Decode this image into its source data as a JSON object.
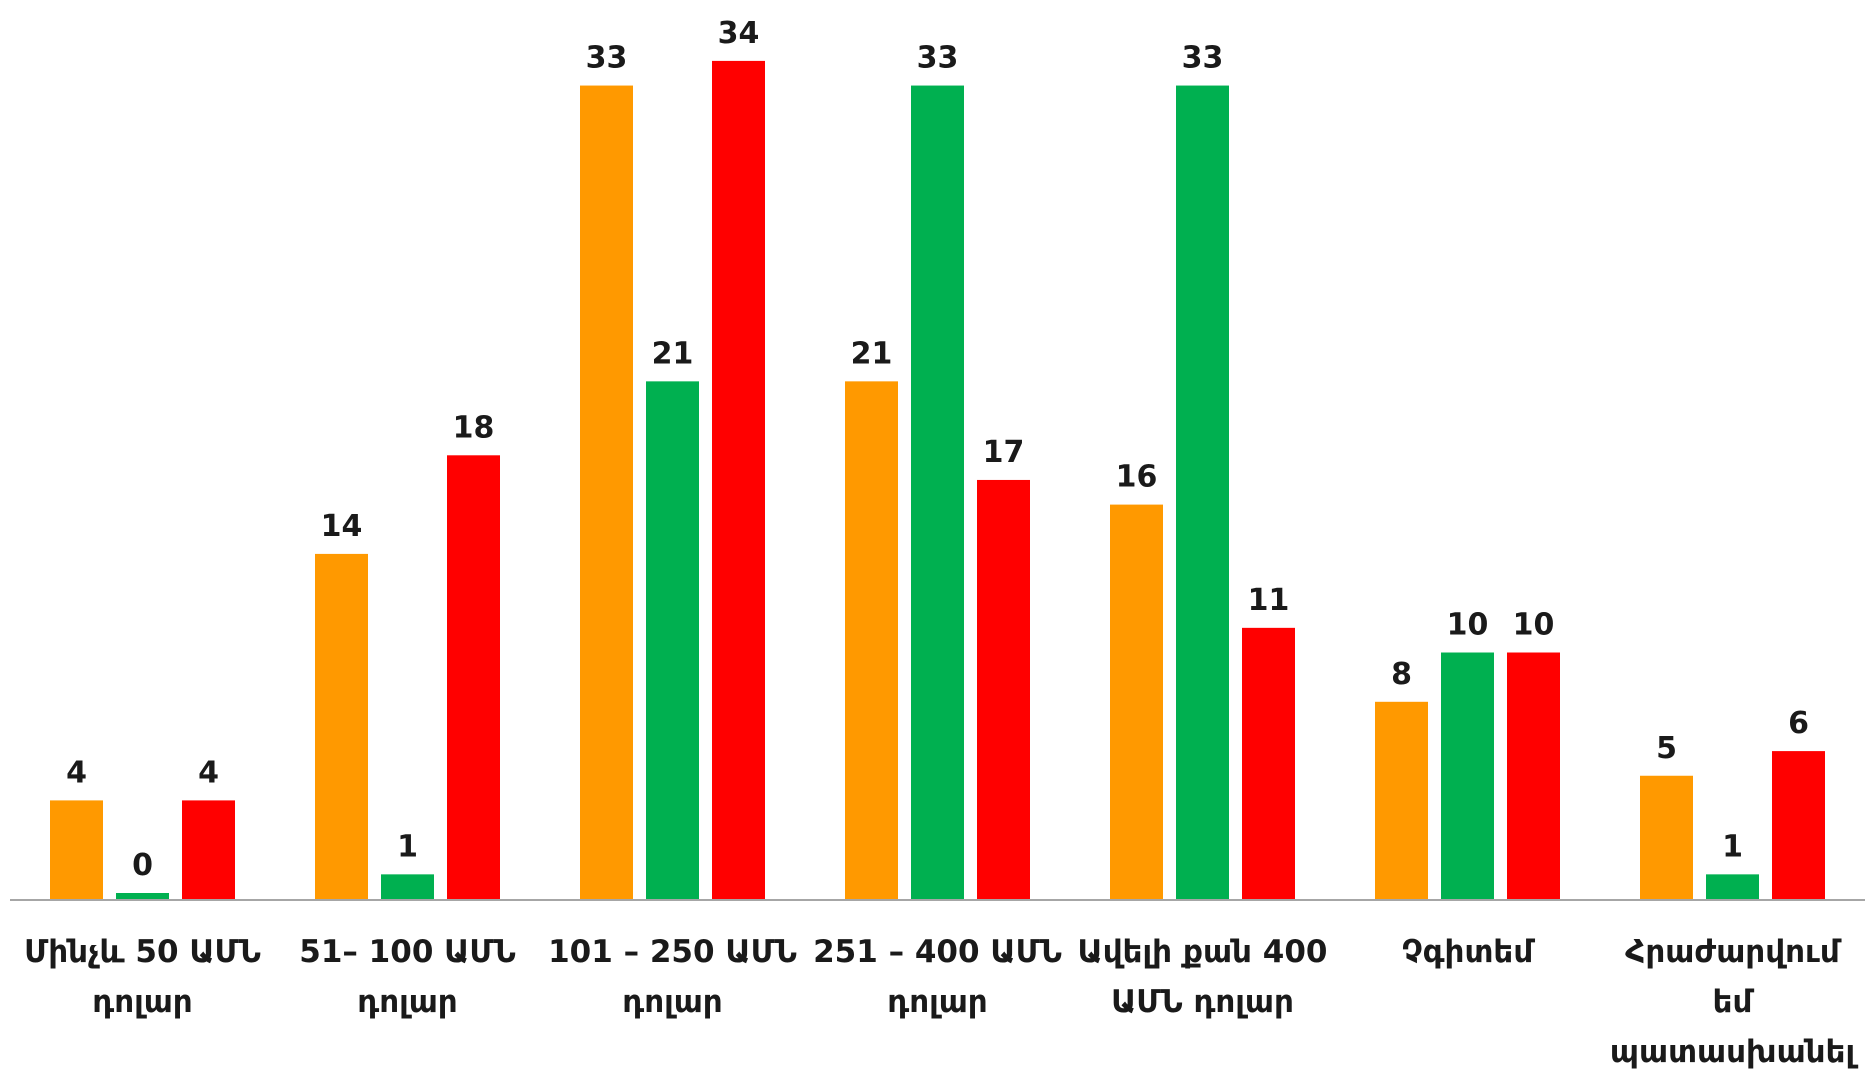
{
  "chart_data": {
    "type": "bar",
    "title": "",
    "xlabel": "",
    "ylabel": "",
    "ylim": [
      0,
      34
    ],
    "grid": false,
    "legend": "none",
    "categories": [
      [
        "Մինչև 50 ԱՄՆ",
        "դոլար"
      ],
      [
        "51– 100 ԱՄՆ",
        "դոլար"
      ],
      [
        "101 – 250 ԱՄՆ",
        "դոլար"
      ],
      [
        "251 – 400 ԱՄՆ",
        "դոլար"
      ],
      [
        "Ավելի քան 400",
        "ԱՄՆ դոլար"
      ],
      [
        "Չգիտեմ"
      ],
      [
        "Հրաժարվում",
        "եմ",
        "պատասխանել"
      ]
    ],
    "series": [
      {
        "color": "#FF9900",
        "values": [
          4,
          14,
          33,
          21,
          16,
          8,
          5
        ]
      },
      {
        "color": "#00B050",
        "values": [
          0,
          1,
          21,
          33,
          33,
          10,
          1
        ]
      },
      {
        "color": "#FF0000",
        "values": [
          4,
          18,
          34,
          17,
          11,
          10,
          6
        ]
      }
    ],
    "axis_color": "#A6A6A6"
  }
}
